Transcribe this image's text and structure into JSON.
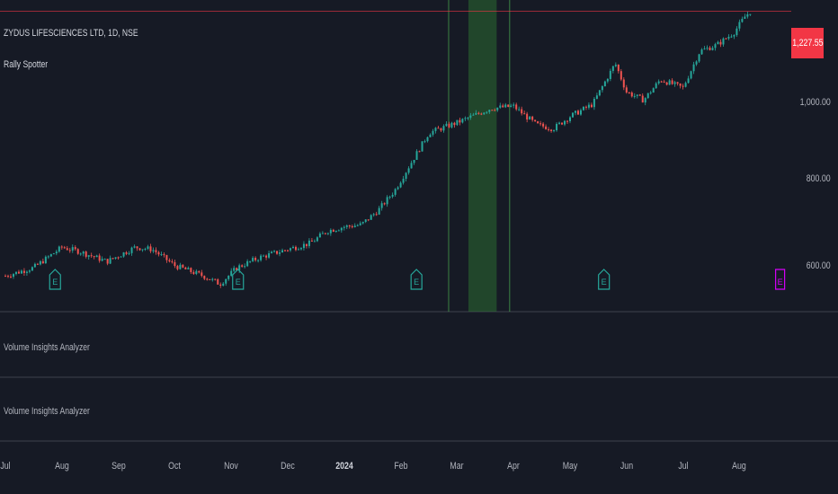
{
  "header": {
    "symbol_line": "ZYDUS LIFESCIENCES LTD, 1D, NSE",
    "indicator": "Rally Spotter"
  },
  "last_price": {
    "label": "1,227.55",
    "value": 1227.55,
    "color": "#f23645"
  },
  "panes": [
    {
      "label": "Volume Insights Analyzer"
    },
    {
      "label": "Volume Insights Analyzer"
    }
  ],
  "colors": {
    "background": "#161a25",
    "up": "#26a69a",
    "down": "#ef5350",
    "grid": "#1f2330",
    "highlight": "#2e7d32",
    "earnings": "#26a69a",
    "earnings_next": "#d500f9"
  },
  "chart_data": {
    "type": "candlestick",
    "symbol": "ZYDUS LIFESCIENCES LTD",
    "interval": "1D",
    "exchange": "NSE",
    "y_ticks": [
      {
        "label": "1,000.00",
        "value": 1000
      },
      {
        "label": "800.00",
        "value": 800
      },
      {
        "label": "600.00",
        "value": 600
      }
    ],
    "x_ticks": [
      {
        "label": "Jul",
        "month": 0
      },
      {
        "label": "Aug",
        "month": 1
      },
      {
        "label": "Sep",
        "month": 2
      },
      {
        "label": "Oct",
        "month": 3
      },
      {
        "label": "Nov",
        "month": 4
      },
      {
        "label": "Dec",
        "month": 5
      },
      {
        "label": "2024",
        "month": 6,
        "bold": true
      },
      {
        "label": "Feb",
        "month": 7
      },
      {
        "label": "Mar",
        "month": 8
      },
      {
        "label": "Apr",
        "month": 9
      },
      {
        "label": "May",
        "month": 10
      },
      {
        "label": "Jun",
        "month": 11
      },
      {
        "label": "Jul",
        "month": 12
      },
      {
        "label": "Aug",
        "month": 13
      }
    ],
    "trend": [
      [
        0.0,
        580
      ],
      [
        0.5,
        600
      ],
      [
        1.0,
        650
      ],
      [
        1.3,
        640
      ],
      [
        1.8,
        615
      ],
      [
        2.3,
        650
      ],
      [
        2.6,
        645
      ],
      [
        3.0,
        605
      ],
      [
        3.5,
        580
      ],
      [
        3.8,
        560
      ],
      [
        4.1,
        600
      ],
      [
        4.5,
        625
      ],
      [
        5.0,
        645
      ],
      [
        5.4,
        660
      ],
      [
        5.7,
        690
      ],
      [
        6.0,
        700
      ],
      [
        6.3,
        705
      ],
      [
        6.6,
        740
      ],
      [
        6.9,
        790
      ],
      [
        7.2,
        860
      ],
      [
        7.5,
        930
      ],
      [
        8.0,
        955
      ],
      [
        8.6,
        990
      ],
      [
        9.0,
        995
      ],
      [
        9.4,
        950
      ],
      [
        9.7,
        940
      ],
      [
        10.0,
        970
      ],
      [
        10.4,
        1000
      ],
      [
        10.8,
        1100
      ],
      [
        11.0,
        1030
      ],
      [
        11.3,
        1010
      ],
      [
        11.6,
        1060
      ],
      [
        12.0,
        1040
      ],
      [
        12.3,
        1130
      ],
      [
        12.6,
        1145
      ],
      [
        12.9,
        1175
      ],
      [
        13.1,
        1215
      ],
      [
        13.2,
        1227.55
      ]
    ],
    "earnings_markers": [
      {
        "month": 0.88,
        "label": "E",
        "type": "past"
      },
      {
        "month": 4.12,
        "label": "E",
        "type": "past"
      },
      {
        "month": 7.28,
        "label": "E",
        "type": "past"
      },
      {
        "month": 10.6,
        "label": "E",
        "type": "past"
      },
      {
        "month": 13.72,
        "label": "E",
        "type": "upcoming"
      }
    ],
    "signal_lines": [
      7.85,
      8.93
    ],
    "highlight_band": [
      8.2,
      8.7
    ]
  }
}
